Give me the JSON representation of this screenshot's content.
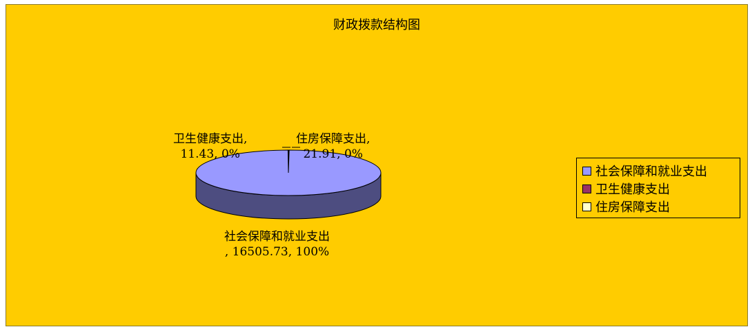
{
  "chart_data": {
    "type": "pie",
    "title": "财政拨款结构图",
    "slices": [
      {
        "name": "社会保障和就业支出",
        "value": 16505.73,
        "percent": "100%",
        "color": "#9999ff",
        "dark": "#4d4d80",
        "label": {
          "line1": "社会保障和就业支出",
          "line2": ", 16505.73, 100%"
        }
      },
      {
        "name": "卫生健康支出",
        "value": 11.43,
        "percent": "0%",
        "color": "#993366",
        "dark": "#4d1a33",
        "label": {
          "line1": "卫生健康支出,",
          "line2": "11.43, 0%"
        }
      },
      {
        "name": "住房保障支出",
        "value": 21.91,
        "percent": "0%",
        "color": "#ffffcc",
        "dark": "#80806b",
        "label": {
          "line1": "住房保障支出,",
          "line2": "21.91, 0%"
        }
      }
    ],
    "legend_position": "right"
  },
  "colors": {
    "background": "#ffcc00"
  }
}
